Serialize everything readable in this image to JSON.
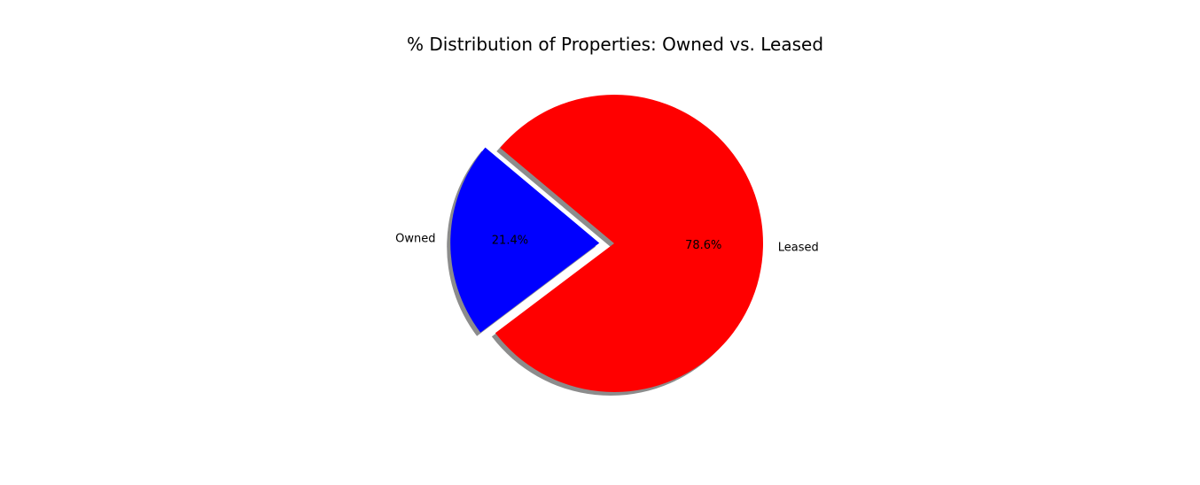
{
  "chart_data": {
    "type": "pie",
    "title": "% Distribution of Properties: Owned vs. Leased",
    "labels": [
      "Owned",
      "Leased"
    ],
    "values": [
      21.4,
      78.6
    ],
    "percent_labels": [
      "21.4%",
      "78.6%"
    ],
    "colors": [
      "#0000ff",
      "#ff0000"
    ],
    "exploded": [
      "Owned"
    ],
    "shadow": true,
    "start_angle_deg": 140
  }
}
